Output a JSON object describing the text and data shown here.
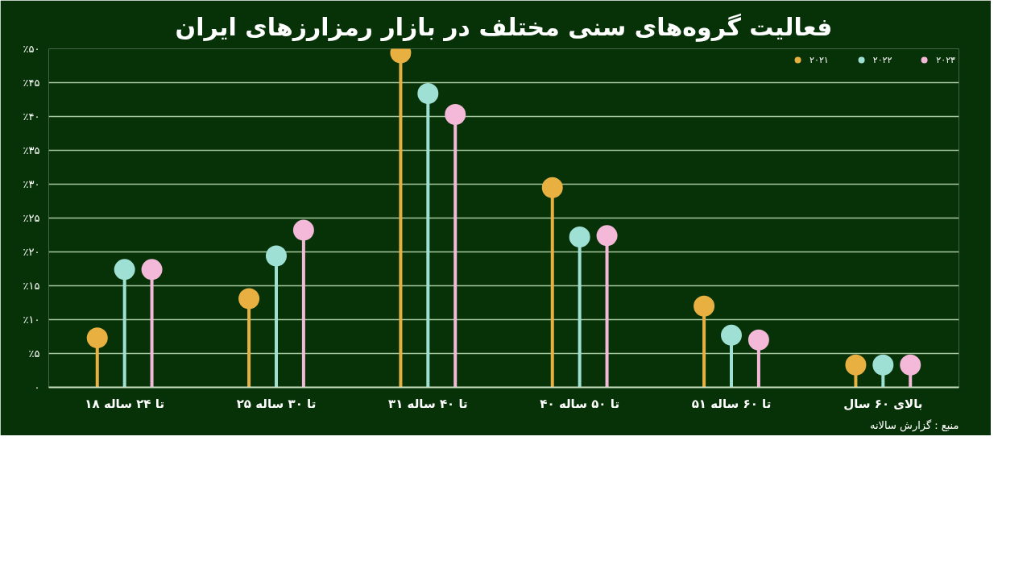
{
  "chart_data": {
    "type": "lollipop",
    "title": "فعالیت گروه‌های سنی مختلف در بازار رمزارزهای ایران",
    "categories": [
      "۱۸ تا ۲۴ ساله",
      "۲۵ تا ۳۰ ساله",
      "۳۱ تا ۴۰ ساله",
      "۴۰ تا ۵۰ ساله",
      "۵۱ تا ۶۰ ساله",
      "بالای ۶۰ سال"
    ],
    "series": [
      {
        "name": "۲۰۲۱",
        "color": "#e8b040",
        "values": [
          7.3,
          13.1,
          49.4,
          29.5,
          12.0,
          3.3
        ]
      },
      {
        "name": "۲۰۲۲",
        "color": "#9fe0d4",
        "values": [
          17.4,
          19.4,
          43.4,
          22.2,
          7.7,
          3.3
        ]
      },
      {
        "name": "۲۰۲۳",
        "color": "#f4b8d8",
        "values": [
          17.4,
          23.2,
          40.3,
          22.4,
          7.0,
          3.3
        ]
      }
    ],
    "ylim": [
      0,
      50
    ],
    "yticks": [
      {
        "value": 0,
        "label": "۰"
      },
      {
        "value": 5,
        "label": "٪۵"
      },
      {
        "value": 10,
        "label": "٪۱۰"
      },
      {
        "value": 15,
        "label": "٪۱۵"
      },
      {
        "value": 20,
        "label": "٪۲۰"
      },
      {
        "value": 25,
        "label": "٪۲۵"
      },
      {
        "value": 30,
        "label": "٪۳۰"
      },
      {
        "value": 35,
        "label": "٪۳۵"
      },
      {
        "value": 40,
        "label": "٪۴۰"
      },
      {
        "value": 45,
        "label": "٪۴۵"
      },
      {
        "value": 50,
        "label": "٪۵۰"
      }
    ],
    "grid": "y",
    "legend": "top",
    "marker": "circle",
    "annotations": [
      "منبع : گزارش سالانه"
    ]
  }
}
